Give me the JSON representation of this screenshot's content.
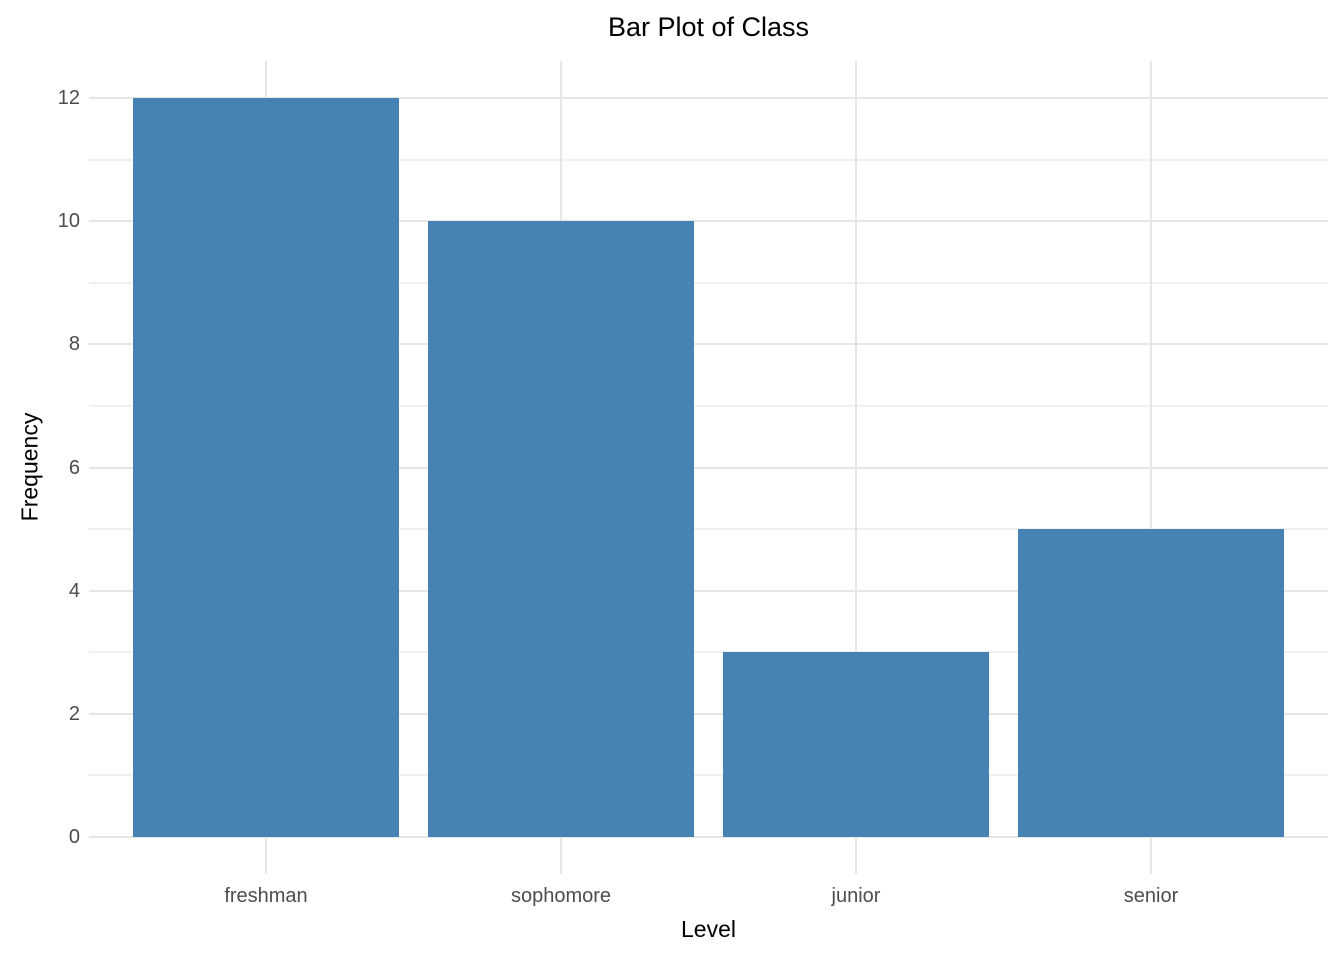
{
  "chart_data": {
    "type": "bar",
    "title": "Bar Plot of Class",
    "xlabel": "Level",
    "ylabel": "Frequency",
    "categories": [
      "freshman",
      "sophomore",
      "junior",
      "senior"
    ],
    "values": [
      12,
      10,
      3,
      5
    ],
    "ylim": [
      0,
      12
    ],
    "y_major_ticks": [
      0,
      2,
      4,
      6,
      8,
      10,
      12
    ],
    "y_minor_ticks": [
      1,
      3,
      5,
      7,
      9,
      11
    ],
    "grid": "on",
    "legend_position": "none",
    "style": {
      "bar_color": "#4682B4",
      "major_grid_color": "#E6E6E6",
      "minor_grid_color": "#F0F0F0",
      "axis_text_color": "#4D4D4D",
      "title_color": "#000000",
      "background": "#FFFFFF"
    }
  }
}
